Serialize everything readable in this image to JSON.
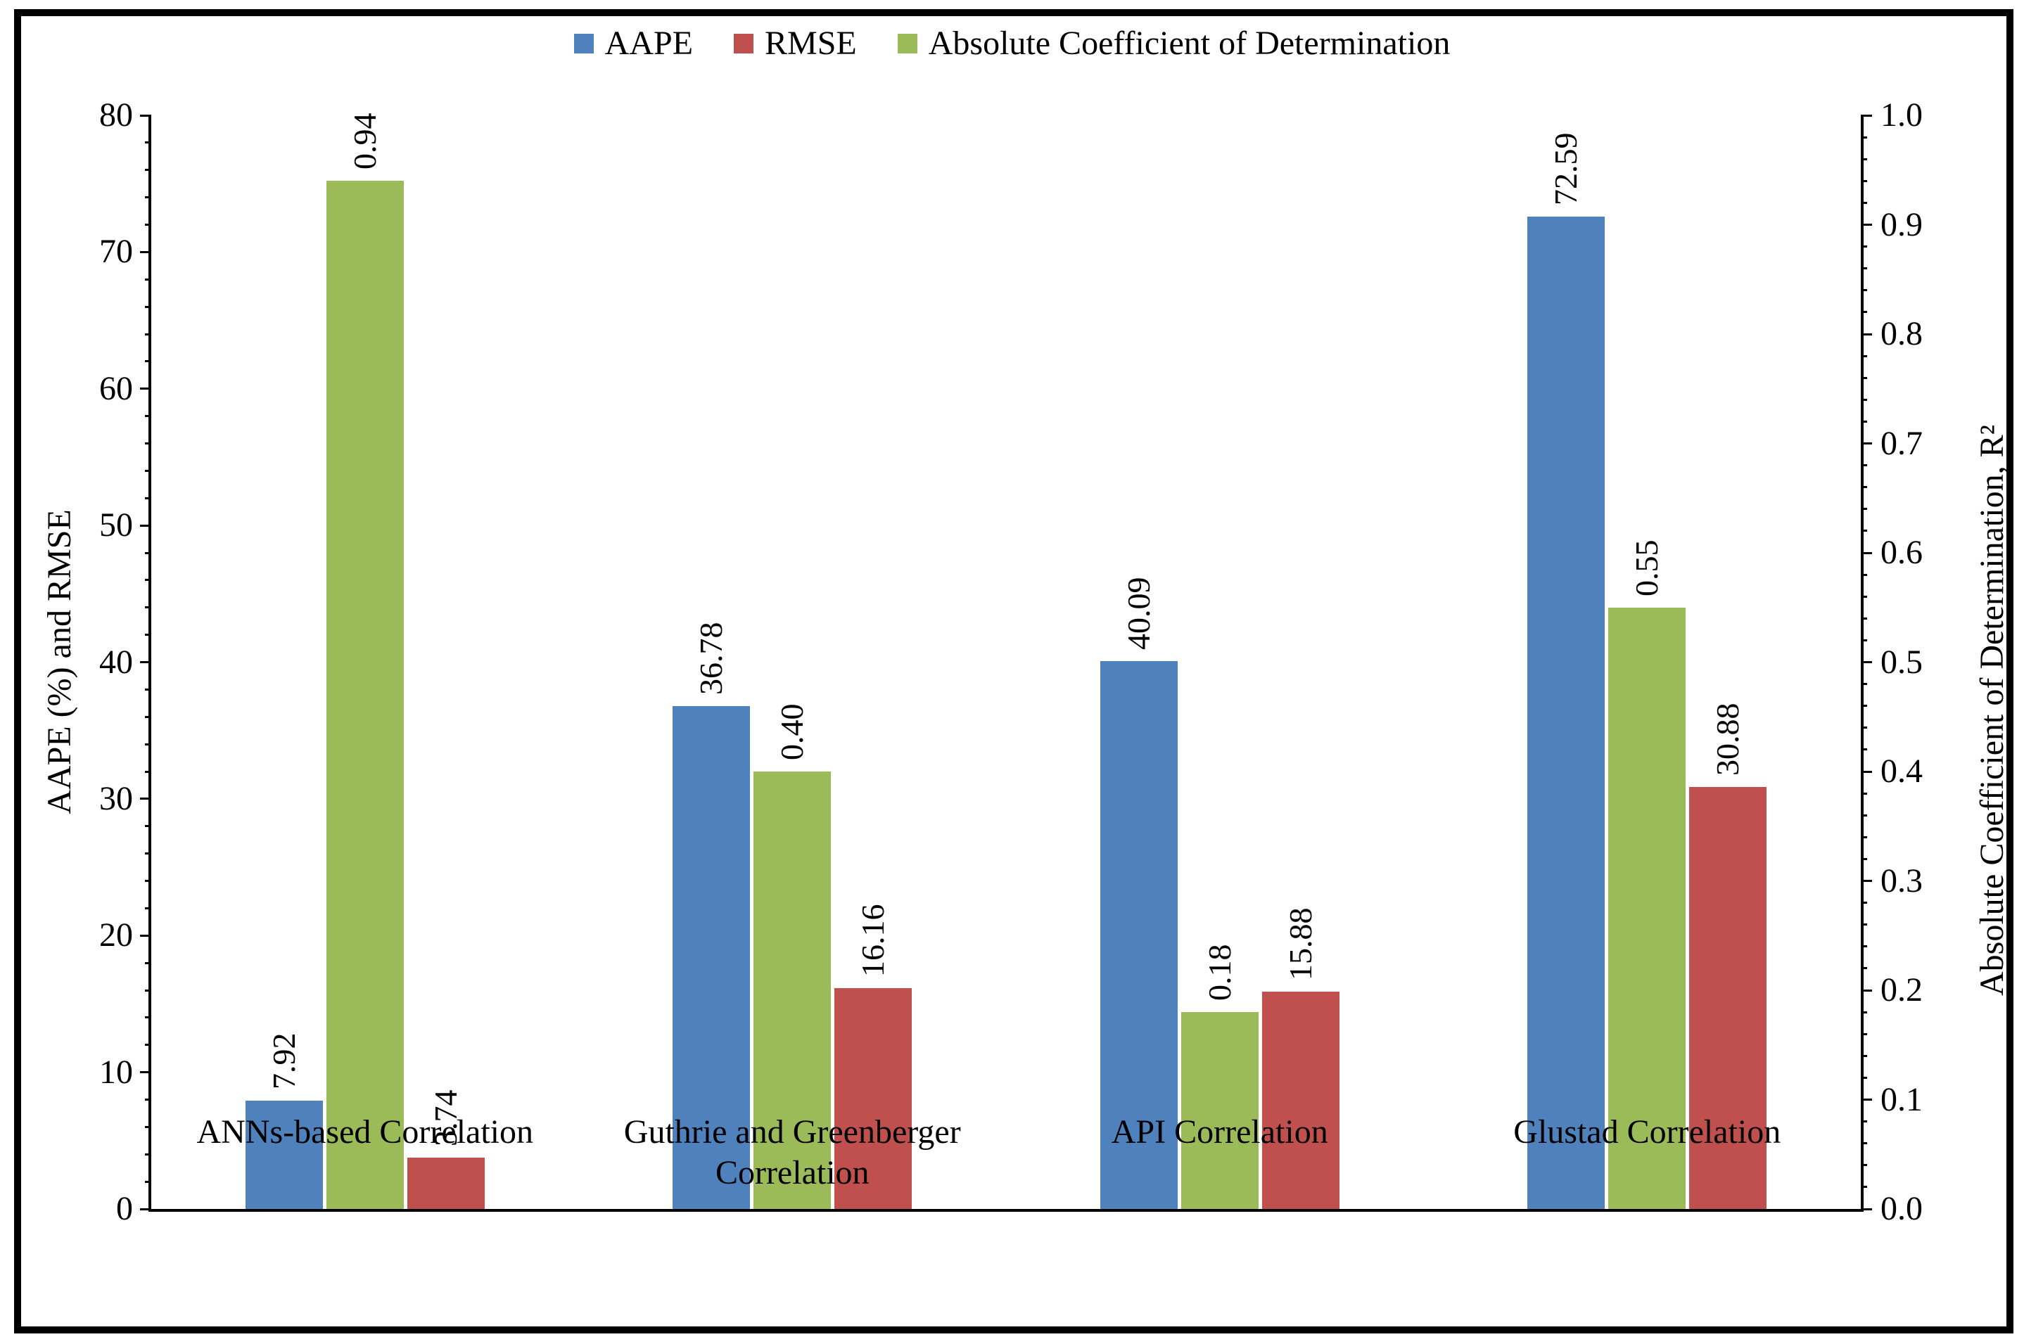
{
  "chart_data": {
    "type": "bar",
    "title": "",
    "categories": [
      "ANNs-based Correlation",
      "Guthrie and Greenberger Correlation",
      "API Correlation",
      "Glustad Correlation"
    ],
    "series": [
      {
        "name": "AAPE",
        "axis": "left",
        "color": "#4f81bd",
        "values": [
          7.92,
          36.78,
          40.09,
          72.59
        ],
        "labels": [
          "7.92",
          "36.78",
          "40.09",
          "72.59"
        ]
      },
      {
        "name": "Absolute Coefficient of Determination",
        "axis": "right",
        "color": "#9bbb59",
        "values": [
          0.94,
          0.4,
          0.18,
          0.55
        ],
        "labels": [
          "0.94",
          "0.40",
          "0.18",
          "0.55"
        ]
      },
      {
        "name": "RMSE",
        "axis": "left",
        "color": "#c0504d",
        "values": [
          3.74,
          16.16,
          15.88,
          30.88
        ],
        "labels": [
          "3.74",
          "16.16",
          "15.88",
          "30.88"
        ]
      }
    ],
    "left_axis": {
      "title": "AAPE (%) and RMSE",
      "min": 0,
      "max": 80,
      "major_step": 10,
      "minor_step": 2,
      "decimals": 0
    },
    "right_axis": {
      "title": "Absolute Coefficient of Determination, R²",
      "min": 0,
      "max": 1.0,
      "major_step": 0.1,
      "minor_step": 0.02,
      "decimals": 1
    },
    "legend_position": "top",
    "grid": "off",
    "bar_value_labels_rotated": true
  },
  "legend": {
    "items": [
      {
        "label": "AAPE",
        "color": "#4f81bd"
      },
      {
        "label": "RMSE",
        "color": "#c0504d"
      },
      {
        "label": "Absolute Coefficient of Determination",
        "color": "#9bbb59"
      }
    ]
  }
}
